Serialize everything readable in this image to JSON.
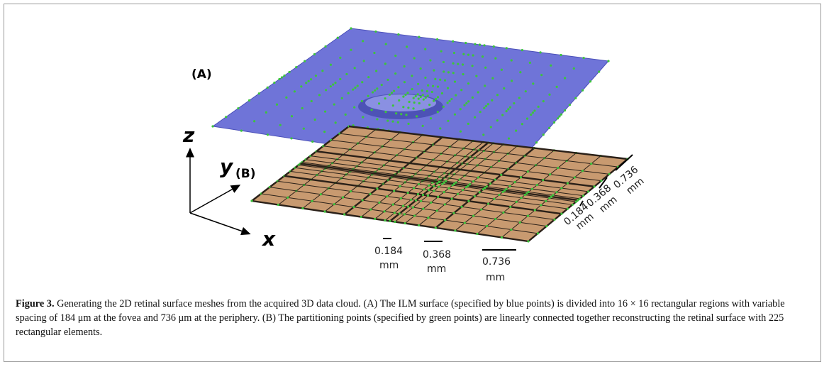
{
  "figure": {
    "panel_labels": [
      "(A)",
      "(B)"
    ],
    "axis_labels": {
      "z": "z",
      "y": "y",
      "x": "x"
    },
    "x_scale": [
      {
        "value": "0.184",
        "unit": "mm"
      },
      {
        "value": "0.368",
        "unit": "mm"
      },
      {
        "value": "0.736",
        "unit": "mm"
      }
    ],
    "y_scale": [
      {
        "value": "0.184",
        "unit": "mm"
      },
      {
        "value": "0.368",
        "unit": "mm"
      },
      {
        "value": "0.736",
        "unit": "mm"
      }
    ],
    "caption": {
      "label": "Figure 3.",
      "text": "Generating the 2D retinal surface meshes from the acquired 3D data cloud. (A) The ILM surface (specified by blue points) is divided into 16 × 16 rectangular regions with variable spacing of 184 μm at the fovea and 736 μm at the periphery. (B) The partitioning points (specified by green points) are linearly connected together reconstructing the retinal surface with 225 rectangular elements."
    }
  }
}
